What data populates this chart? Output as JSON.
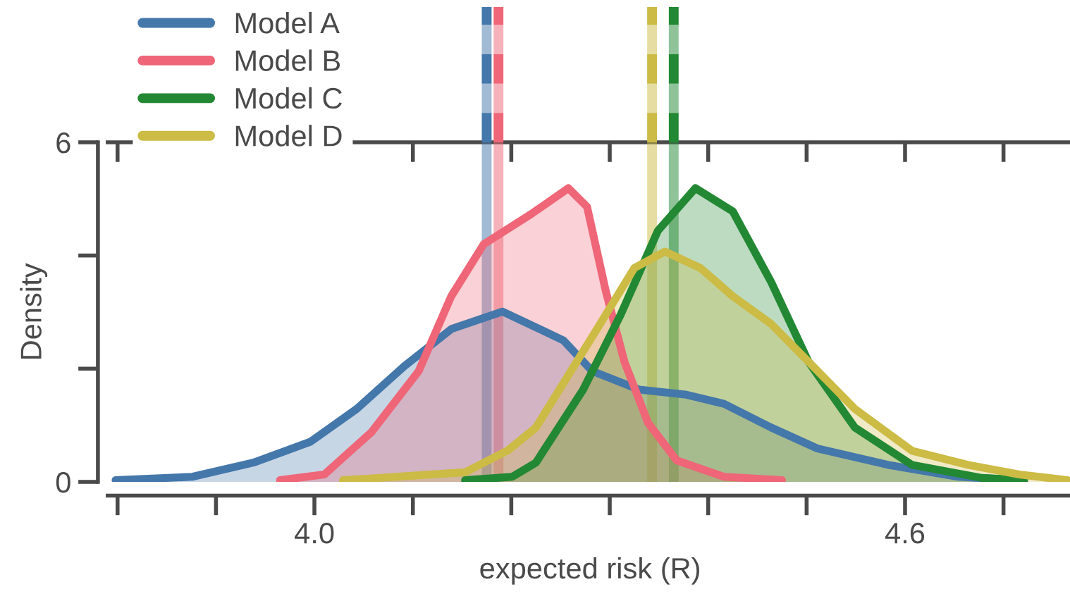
{
  "chart_data": {
    "type": "area",
    "xlabel": "expected risk (R)",
    "ylabel": "Density",
    "legend": "top left",
    "grid": false,
    "xlim": [
      3.79,
      4.77
    ],
    "ylim": [
      0,
      6
    ],
    "xticks": [
      {
        "value": 3.8,
        "label": null
      },
      {
        "value": 3.9,
        "label": null
      },
      {
        "value": 4.0,
        "label": "4.0"
      },
      {
        "value": 4.1,
        "label": null
      },
      {
        "value": 4.2,
        "label": null
      },
      {
        "value": 4.3,
        "label": null
      },
      {
        "value": 4.4,
        "label": null
      },
      {
        "value": 4.5,
        "label": null
      },
      {
        "value": 4.6,
        "label": "4.6"
      },
      {
        "value": 4.7,
        "label": null
      }
    ],
    "yticks": [
      0,
      {
        "value": 2,
        "label": null
      },
      {
        "value": 4,
        "label": null
      },
      6
    ],
    "series": [
      {
        "name": "Model A",
        "color": "#4477aa",
        "x": [
          3.798,
          3.876,
          3.938,
          3.996,
          4.043,
          4.091,
          4.139,
          4.191,
          4.253,
          4.282,
          4.33,
          4.378,
          4.416,
          4.464,
          4.511,
          4.583,
          4.654,
          4.716
        ],
        "values": [
          0.03,
          0.09,
          0.34,
          0.71,
          1.29,
          2.04,
          2.7,
          3.01,
          2.5,
          1.96,
          1.63,
          1.54,
          1.38,
          0.96,
          0.59,
          0.3,
          0.09,
          0.03
        ]
      },
      {
        "name": "Model B",
        "color": "#ee6677",
        "x": [
          3.965,
          4.01,
          4.058,
          4.106,
          4.139,
          4.172,
          4.22,
          4.258,
          4.277,
          4.296,
          4.315,
          4.339,
          4.368,
          4.416,
          4.475
        ],
        "values": [
          0.03,
          0.13,
          0.88,
          1.96,
          3.28,
          4.2,
          4.73,
          5.19,
          4.86,
          3.37,
          2.12,
          1.04,
          0.38,
          0.09,
          0.03
        ]
      },
      {
        "name": "Model C",
        "color": "#228833",
        "x": [
          4.153,
          4.201,
          4.225,
          4.273,
          4.311,
          4.349,
          4.387,
          4.425,
          4.464,
          4.502,
          4.549,
          4.607,
          4.678,
          4.721
        ],
        "values": [
          0.03,
          0.09,
          0.34,
          1.63,
          2.95,
          4.44,
          5.19,
          4.78,
          3.53,
          2.12,
          0.96,
          0.3,
          0.07,
          0.03
        ]
      },
      {
        "name": "Model D",
        "color": "#ccbb44",
        "x": [
          4.029,
          4.153,
          4.196,
          4.225,
          4.287,
          4.325,
          4.356,
          4.392,
          4.425,
          4.464,
          4.502,
          4.549,
          4.607,
          4.664,
          4.716,
          4.765
        ],
        "values": [
          0.03,
          0.17,
          0.55,
          0.96,
          2.7,
          3.78,
          4.07,
          3.78,
          3.28,
          2.79,
          2.12,
          1.29,
          0.55,
          0.3,
          0.13,
          0.03
        ]
      }
    ],
    "ref_lines": [
      {
        "axis": "x",
        "value": 4.175,
        "color": "#4477aa",
        "line_style": "solid"
      },
      {
        "axis": "x",
        "value": 4.187,
        "color": "#ee6677",
        "line_style": "solid"
      },
      {
        "axis": "x",
        "value": 4.343,
        "color": "#ccbb44",
        "line_style": "solid"
      },
      {
        "axis": "x",
        "value": 4.365,
        "color": "#228833",
        "line_style": "solid"
      }
    ]
  }
}
